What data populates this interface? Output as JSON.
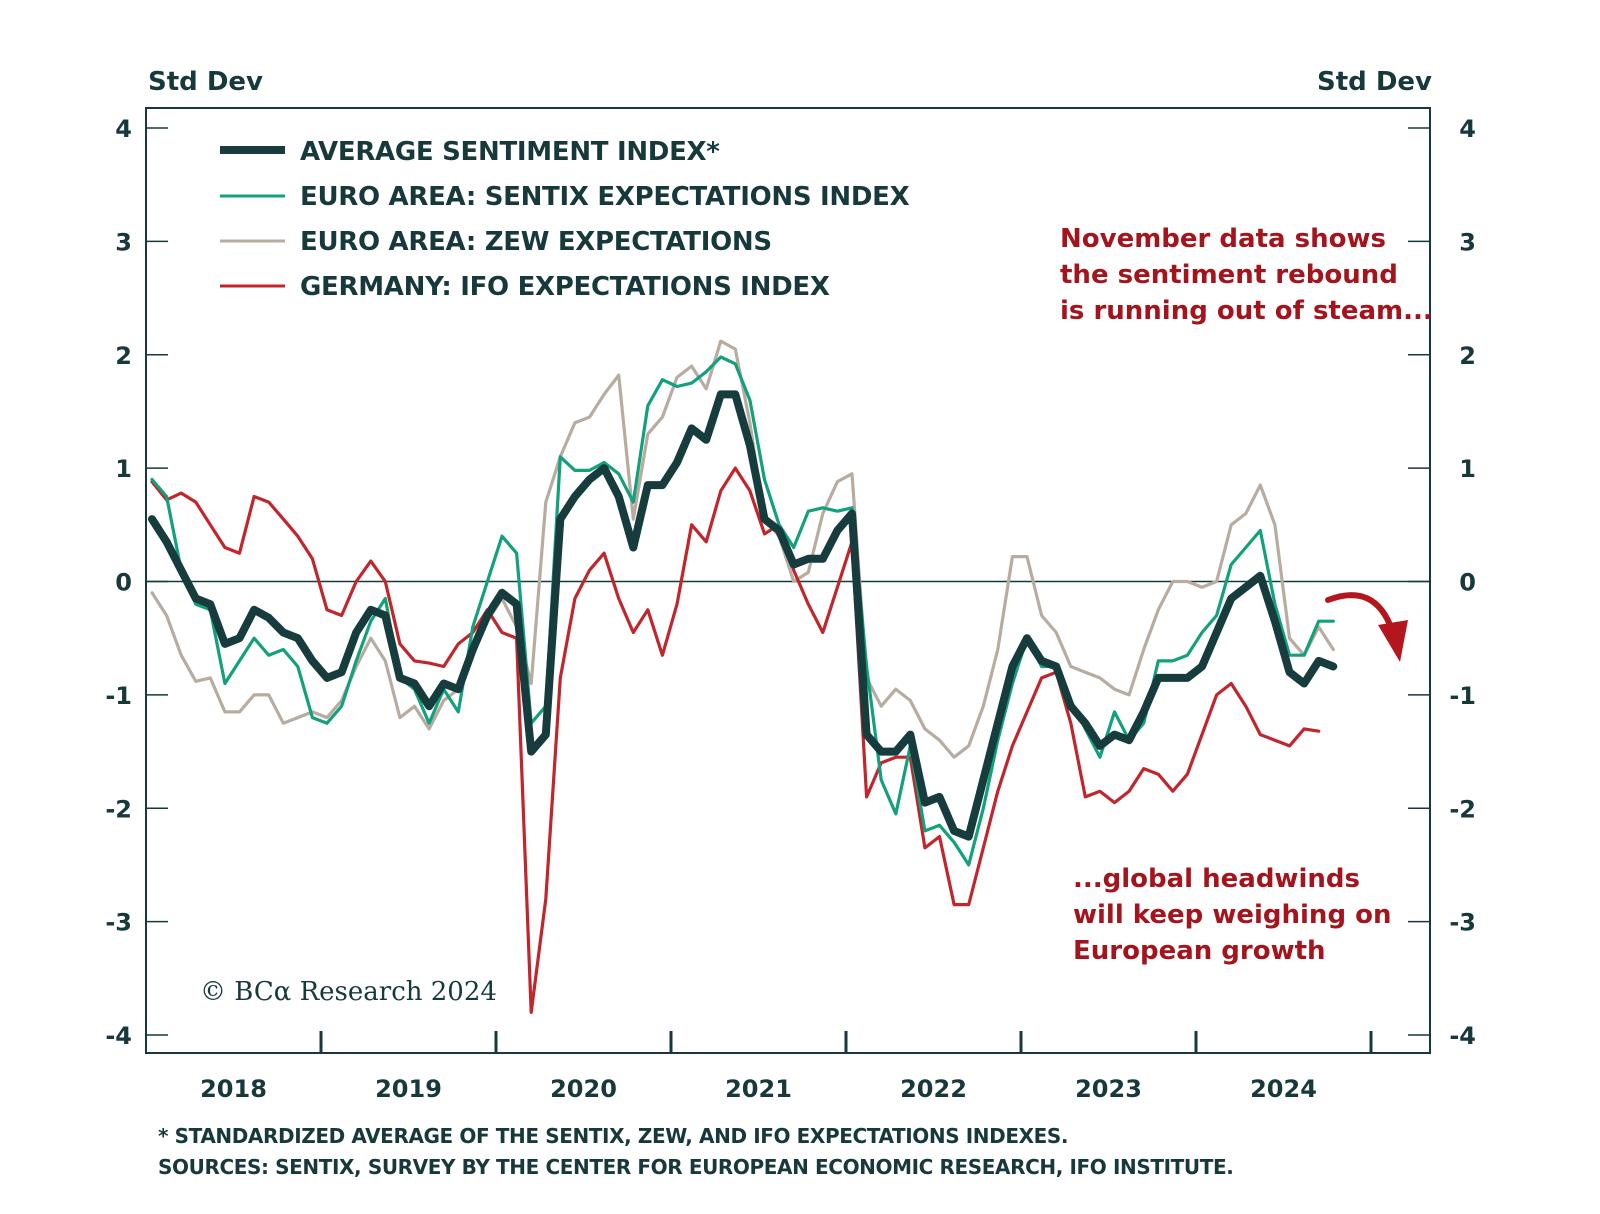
{
  "chart_data": {
    "type": "line",
    "title": "",
    "ylabel_left": "Std Dev",
    "ylabel_right": "Std Dev",
    "ylim": [
      -4,
      4
    ],
    "yticks": [
      4,
      3,
      2,
      1,
      0,
      -1,
      -2,
      -3,
      -4
    ],
    "ytick_labels": [
      "4",
      "3",
      "2",
      "1",
      "0",
      "-1",
      "-2",
      "-3",
      "-4"
    ],
    "x_start": "2018-01",
    "x_frequency": "monthly",
    "xtick_labels": [
      "2018",
      "2019",
      "2020",
      "2021",
      "2022",
      "2023",
      "2024"
    ],
    "zero_line": true,
    "grid": false,
    "legend_position": "top-left",
    "series": [
      {
        "name": "AVERAGE SENTIMENT INDEX*",
        "color": "#163c3e",
        "style": "thick",
        "values": [
          0.55,
          0.35,
          0.1,
          -0.15,
          -0.2,
          -0.55,
          -0.5,
          -0.25,
          -0.32,
          -0.45,
          -0.5,
          -0.7,
          -0.85,
          -0.8,
          -0.45,
          -0.25,
          -0.3,
          -0.85,
          -0.9,
          -1.1,
          -0.9,
          -0.95,
          -0.6,
          -0.3,
          -0.1,
          -0.2,
          -1.5,
          -1.35,
          0.55,
          0.75,
          0.9,
          1.0,
          0.75,
          0.3,
          0.85,
          0.85,
          1.05,
          1.35,
          1.25,
          1.65,
          1.65,
          1.2,
          0.55,
          0.45,
          0.15,
          0.2,
          0.2,
          0.45,
          0.6,
          -1.35,
          -1.5,
          -1.5,
          -1.35,
          -1.95,
          -1.9,
          -2.2,
          -2.25,
          -1.75,
          -1.25,
          -0.75,
          -0.5,
          -0.7,
          -0.75,
          -1.1,
          -1.25,
          -1.45,
          -1.35,
          -1.4,
          -1.15,
          -0.85,
          -0.85,
          -0.85,
          -0.75,
          -0.45,
          -0.15,
          -0.05,
          0.05,
          -0.35,
          -0.8,
          -0.9,
          -0.7,
          -0.75
        ]
      },
      {
        "name": "EURO AREA: SENTIX EXPECTATIONS INDEX",
        "color": "#13a07c",
        "style": "thin",
        "values": [
          0.9,
          0.75,
          0.1,
          -0.2,
          -0.25,
          -0.9,
          -0.7,
          -0.5,
          -0.65,
          -0.6,
          -0.75,
          -1.2,
          -1.25,
          -1.1,
          -0.7,
          -0.35,
          -0.15,
          -0.85,
          -0.95,
          -1.25,
          -0.95,
          -1.15,
          -0.4,
          0.0,
          0.4,
          0.25,
          -1.25,
          -1.1,
          1.1,
          0.98,
          0.98,
          1.05,
          0.95,
          0.7,
          1.55,
          1.78,
          1.72,
          1.75,
          1.85,
          1.98,
          1.92,
          1.6,
          0.9,
          0.5,
          0.3,
          0.62,
          0.65,
          0.62,
          0.65,
          -0.75,
          -1.75,
          -2.05,
          -1.45,
          -2.2,
          -2.15,
          -2.3,
          -2.5,
          -2.0,
          -1.4,
          -0.9,
          -0.5,
          -0.75,
          -0.75,
          -1.05,
          -1.3,
          -1.55,
          -1.15,
          -1.4,
          -1.25,
          -0.7,
          -0.7,
          -0.65,
          -0.45,
          -0.3,
          0.15,
          0.3,
          0.45,
          -0.2,
          -0.65,
          -0.65,
          -0.35,
          -0.35
        ]
      },
      {
        "name": "EURO AREA: ZEW EXPECTATIONS",
        "color": "#b8aca0",
        "style": "thin",
        "values": [
          -0.1,
          -0.3,
          -0.65,
          -0.88,
          -0.85,
          -1.15,
          -1.15,
          -1.0,
          -1.0,
          -1.25,
          -1.2,
          -1.15,
          -1.2,
          -1.05,
          -0.75,
          -0.5,
          -0.7,
          -1.2,
          -1.1,
          -1.3,
          -1.05,
          -0.95,
          -0.65,
          -0.35,
          -0.15,
          -0.4,
          -0.9,
          0.7,
          1.1,
          1.4,
          1.45,
          1.65,
          1.82,
          0.55,
          1.3,
          1.45,
          1.8,
          1.9,
          1.7,
          2.12,
          2.05,
          1.4,
          0.55,
          0.4,
          0.0,
          0.08,
          0.6,
          0.88,
          0.95,
          -0.85,
          -1.1,
          -0.95,
          -1.05,
          -1.3,
          -1.4,
          -1.55,
          -1.45,
          -1.1,
          -0.6,
          0.22,
          0.22,
          -0.3,
          -0.45,
          -0.75,
          -0.8,
          -0.85,
          -0.95,
          -1.0,
          -0.6,
          -0.25,
          0.0,
          0.0,
          -0.05,
          0.0,
          0.5,
          0.6,
          0.85,
          0.5,
          -0.5,
          -0.65,
          -0.4,
          -0.6
        ]
      },
      {
        "name": "GERMANY: IFO EXPECTATIONS INDEX",
        "color": "#c0262c",
        "style": "thin",
        "values": [
          0.88,
          0.72,
          0.78,
          0.7,
          0.5,
          0.3,
          0.25,
          0.75,
          0.7,
          0.55,
          0.4,
          0.2,
          -0.25,
          -0.3,
          0.0,
          0.18,
          0.0,
          -0.55,
          -0.7,
          -0.72,
          -0.75,
          -0.55,
          -0.45,
          -0.25,
          -0.45,
          -0.5,
          -3.8,
          -2.8,
          -0.85,
          -0.15,
          0.1,
          0.25,
          -0.15,
          -0.45,
          -0.25,
          -0.65,
          -0.2,
          0.5,
          0.35,
          0.8,
          1.0,
          0.8,
          0.42,
          0.5,
          0.1,
          -0.2,
          -0.45,
          -0.05,
          0.35,
          -1.9,
          -1.6,
          -1.55,
          -1.55,
          -2.35,
          -2.25,
          -2.85,
          -2.85,
          -2.35,
          -1.85,
          -1.45,
          -1.15,
          -0.85,
          -0.8,
          -1.25,
          -1.9,
          -1.85,
          -1.95,
          -1.85,
          -1.65,
          -1.7,
          -1.85,
          -1.7,
          -1.35,
          -1.0,
          -0.9,
          -1.1,
          -1.35,
          -1.4,
          -1.45,
          -1.3,
          -1.32
        ]
      }
    ],
    "annotations": [
      {
        "text_lines": [
          "November data shows",
          "the sentiment rebound",
          "is running out of steam..."
        ],
        "position": "top-right"
      },
      {
        "text_lines": [
          "...global headwinds",
          "will keep weighing on",
          "European growth"
        ],
        "position": "bottom-right"
      }
    ],
    "arrow": {
      "meaning": "downturn",
      "color": "#b4161e"
    },
    "copyright": "© BCα Research 2024",
    "footnotes": [
      "* STANDARDIZED AVERAGE OF THE SENTIX, ZEW, AND IFO EXPECTATIONS INDEXES.",
      "SOURCES: SENTIX, SURVEY BY THE CENTER FOR EUROPEAN ECONOMIC RESEARCH, IFO INSTITUTE."
    ]
  }
}
